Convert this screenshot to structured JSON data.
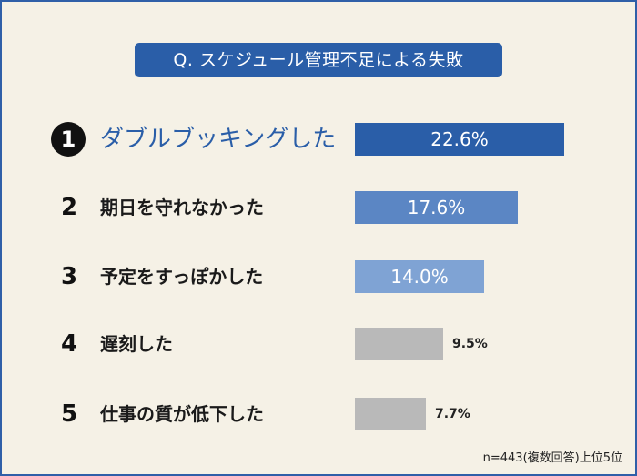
{
  "title": "Q.  スケジュール管理不足による失敗",
  "note": "n=443(複数回答)上位5位",
  "chart_data": {
    "type": "bar",
    "orientation": "horizontal",
    "title": "Q.  スケジュール管理不足による失敗",
    "categories": [
      "ダブルブッキングした",
      "期日を守れなかった",
      "予定をすっぽかした",
      "遅刻した",
      "仕事の質が低下した"
    ],
    "ranks": [
      "1",
      "2",
      "3",
      "4",
      "5"
    ],
    "values": [
      22.6,
      17.6,
      14.0,
      9.5,
      7.7
    ],
    "value_labels": [
      "22.6%",
      "17.6%",
      "14.0%",
      "9.5%",
      "7.7%"
    ],
    "colors": [
      "#2a5ea8",
      "#5b86c4",
      "#7fa3d4",
      "#b9b9b9",
      "#b9b9b9"
    ],
    "xlim": [
      0,
      22.6
    ],
    "grid": false,
    "legend": "none"
  }
}
